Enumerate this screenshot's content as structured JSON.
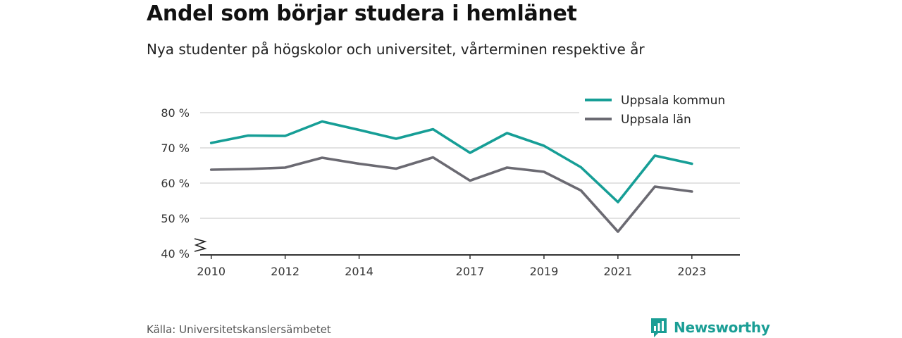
{
  "header": {
    "title": "Andel som börjar studera i hemlänet",
    "subtitle": "Nya studenter på högskolor och universitet, vårterminen respektive år"
  },
  "footer": {
    "source": "Källa: Universitetskanslersämbetet",
    "brand": "Newsworthy",
    "brand_icon": "bar-chart-icon"
  },
  "colors": {
    "series_1": "#169e96",
    "series_2": "#6b6a72",
    "grid": "#d9d9d9",
    "axis": "#333333",
    "brand": "#1a9e95"
  },
  "chart_data": {
    "type": "line",
    "x": [
      2010,
      2011,
      2012,
      2013,
      2014,
      2015,
      2016,
      2017,
      2018,
      2019,
      2020,
      2021,
      2022,
      2023
    ],
    "x_tick_values": [
      2010,
      2012,
      2014,
      2017,
      2019,
      2021,
      2023
    ],
    "x_tick_labels": [
      "2010",
      "2012",
      "2014",
      "2017",
      "2019",
      "2021",
      "2023"
    ],
    "y_tick_values": [
      40,
      50,
      60,
      70,
      80
    ],
    "y_tick_labels": [
      "40 %",
      "50 %",
      "60 %",
      "70 %",
      "80 %"
    ],
    "ylim": [
      40,
      80
    ],
    "xlim": [
      2009.7,
      2024.3
    ],
    "y_axis_break": true,
    "grid": "horizontal",
    "legend_position": "top-right",
    "series": [
      {
        "name": "Uppsala kommun",
        "values": [
          71.4,
          73.5,
          73.4,
          77.5,
          75.1,
          72.6,
          75.3,
          68.6,
          74.2,
          70.6,
          64.5,
          54.6,
          67.8,
          65.5
        ]
      },
      {
        "name": "Uppsala län",
        "values": [
          63.8,
          64.0,
          64.4,
          67.2,
          65.5,
          64.1,
          67.3,
          60.7,
          64.4,
          63.2,
          57.9,
          46.2,
          59.0,
          57.6
        ]
      }
    ]
  }
}
